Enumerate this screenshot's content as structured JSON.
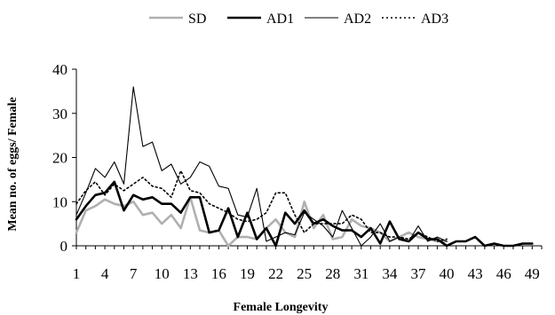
{
  "chart_data": {
    "type": "line",
    "xlabel": "Female Longevity",
    "ylabel": "Mean no. of eggs/ Female",
    "xlim": [
      1,
      50
    ],
    "ylim": [
      0,
      40
    ],
    "x_ticks": [
      "1",
      "4",
      "7",
      "10",
      "13",
      "16",
      "19",
      "22",
      "25",
      "28",
      "31",
      "34",
      "37",
      "40",
      "43",
      "46",
      "49"
    ],
    "y_ticks": [
      "0",
      "10",
      "20",
      "30",
      "40"
    ],
    "grid": false,
    "legend_position": "top",
    "series": [
      {
        "name": "SD",
        "color": "#b0b0b0",
        "style": "solid-thick",
        "x": [
          1,
          2,
          3,
          4,
          5,
          6,
          7,
          8,
          9,
          10,
          11,
          12,
          13,
          14,
          15,
          16,
          17,
          18,
          19,
          20,
          21,
          22,
          23,
          24,
          25,
          26,
          27,
          28,
          29,
          30,
          31,
          32,
          33,
          34,
          35,
          36,
          37,
          38,
          39,
          40
        ],
        "values": [
          3,
          8,
          9,
          10.5,
          9.5,
          9,
          10,
          7,
          7.5,
          5,
          7,
          4,
          11,
          3.5,
          3,
          3.5,
          0,
          2,
          2,
          1.5,
          4,
          6,
          3,
          2,
          10,
          4,
          7,
          1.5,
          2,
          6,
          4.5,
          4,
          3,
          1,
          2,
          3,
          2,
          1.5,
          1,
          1
        ]
      },
      {
        "name": "AD1",
        "color": "#000000",
        "style": "solid-bold",
        "x": [
          1,
          2,
          3,
          4,
          5,
          6,
          7,
          8,
          9,
          10,
          11,
          12,
          13,
          14,
          15,
          16,
          17,
          18,
          19,
          20,
          21,
          22,
          23,
          24,
          25,
          26,
          27,
          28,
          29,
          30,
          31,
          32,
          33,
          34,
          35,
          36,
          37,
          38,
          39,
          40,
          41,
          42,
          43,
          44,
          45,
          46,
          47,
          48,
          49
        ],
        "values": [
          6,
          9,
          11.5,
          12,
          14.5,
          8,
          11.5,
          10.5,
          11,
          9.5,
          9.5,
          7.5,
          11,
          11,
          3,
          3.5,
          8.5,
          2,
          7.5,
          1.5,
          4,
          0,
          7.5,
          5,
          8,
          5,
          6,
          4.5,
          3.5,
          3.5,
          2,
          4,
          0.5,
          5.5,
          1.5,
          1,
          3,
          1.5,
          1.5,
          0,
          1,
          1,
          2,
          0,
          0.5,
          0,
          0,
          0.5,
          0.5
        ]
      },
      {
        "name": "AD2",
        "color": "#000000",
        "style": "solid-thin",
        "x": [
          1,
          2,
          3,
          4,
          5,
          6,
          7,
          8,
          9,
          10,
          11,
          12,
          13,
          14,
          15,
          16,
          17,
          18,
          19,
          20,
          21,
          22,
          23,
          24,
          25,
          26,
          27,
          28,
          29,
          30,
          31,
          32,
          33,
          34,
          35,
          36,
          37,
          38,
          39,
          40
        ],
        "values": [
          7,
          12,
          17.5,
          15.5,
          19,
          14,
          36,
          22.5,
          23.5,
          17,
          18.5,
          14,
          15.5,
          19,
          18,
          13.5,
          13,
          7,
          6.5,
          13,
          1,
          2,
          3,
          2.5,
          7.5,
          6,
          4.5,
          2,
          8,
          4,
          0,
          2,
          5,
          1,
          2,
          1,
          4.5,
          1,
          2,
          1
        ]
      },
      {
        "name": "AD3",
        "color": "#000000",
        "style": "dotted",
        "x": [
          1,
          2,
          3,
          4,
          5,
          6,
          7,
          8,
          9,
          10,
          11,
          12,
          13,
          14,
          15,
          16,
          17,
          18,
          19,
          20,
          21,
          22,
          23,
          24,
          25,
          26,
          27,
          28,
          29,
          30,
          31,
          32,
          33,
          34,
          35,
          36,
          37,
          38,
          39,
          40
        ],
        "values": [
          9.5,
          12.5,
          14.5,
          11.5,
          14,
          12.5,
          14,
          15.5,
          13.5,
          13,
          11,
          17,
          12.5,
          12,
          9.5,
          8.5,
          7.5,
          6,
          5.5,
          6,
          7.5,
          12,
          12,
          7,
          3,
          5,
          5,
          5,
          5,
          7,
          6,
          3,
          3,
          2,
          2,
          1.5,
          3,
          2,
          1,
          1.5
        ]
      }
    ]
  }
}
